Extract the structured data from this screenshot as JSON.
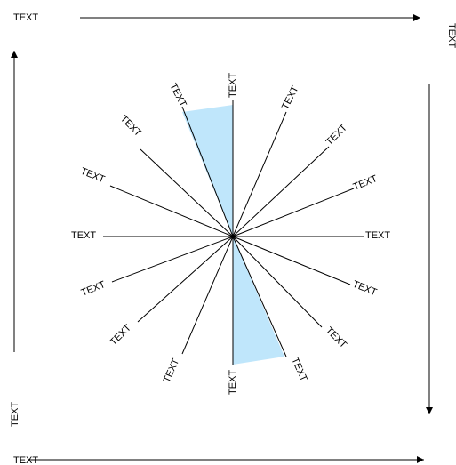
{
  "labels": {
    "top_arrow": "TEXT",
    "right_arrow": "TEXT",
    "left_arrow": "TEXT",
    "bottom_arrow": "TEXT",
    "spokes": [
      "TEXT",
      "TEXT",
      "TEXT",
      "TEXT",
      "TEXT",
      "TEXT",
      "TEXT",
      "TEXT",
      "TEXT",
      "TEXT",
      "TEXT",
      "TEXT",
      "TEXT",
      "TEXT",
      "TEXT",
      "TEXT"
    ]
  },
  "colors": {
    "highlight": "#bfe6fb",
    "stroke": "#000000"
  }
}
